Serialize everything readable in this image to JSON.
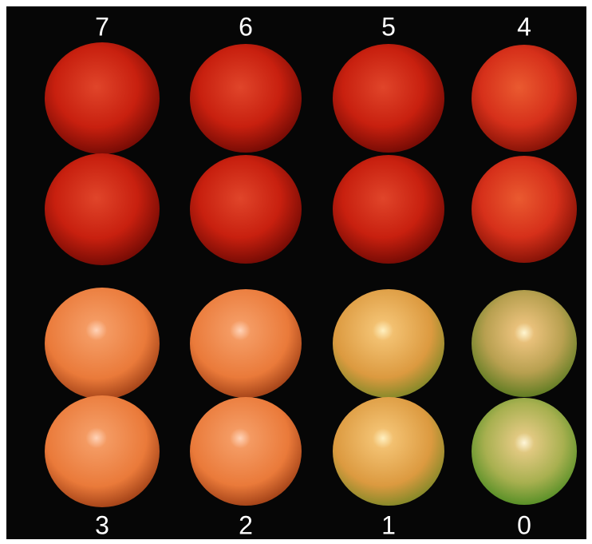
{
  "top_labels": [
    7,
    6,
    5,
    4
  ],
  "bottom_labels": [
    3,
    2,
    1,
    0
  ]
}
